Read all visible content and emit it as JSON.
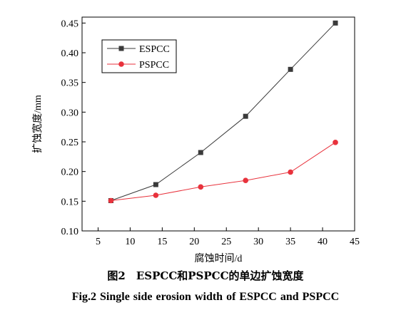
{
  "chart_data": {
    "type": "line",
    "x": [
      7,
      14,
      21,
      28,
      35,
      42
    ],
    "series": [
      {
        "name": "ESPCC",
        "values": [
          0.151,
          0.178,
          0.232,
          0.293,
          0.372,
          0.45
        ],
        "color": "#3a3a3a",
        "marker": "square"
      },
      {
        "name": "PSPCC",
        "values": [
          0.151,
          0.16,
          0.174,
          0.185,
          0.199,
          0.249
        ],
        "color": "#e8323c",
        "marker": "circle"
      }
    ],
    "xlabel": "腐蚀时间/d",
    "ylabel": "扩蚀宽度/mm",
    "xlim": [
      2.5,
      45
    ],
    "ylim": [
      0.1,
      0.46
    ],
    "xticks": [
      "5",
      "10",
      "15",
      "20",
      "25",
      "30",
      "35",
      "40",
      "45"
    ],
    "yticks": [
      "0.10",
      "0.15",
      "0.20",
      "0.25",
      "0.30",
      "0.35",
      "0.40",
      "0.45"
    ],
    "legend": "top-left",
    "grid": false
  },
  "caption": {
    "chinese": "图2　ESPCC和PSPCC的单边扩蚀宽度",
    "english": "Fig.2    Single side erosion width of ESPCC and PSPCC"
  }
}
